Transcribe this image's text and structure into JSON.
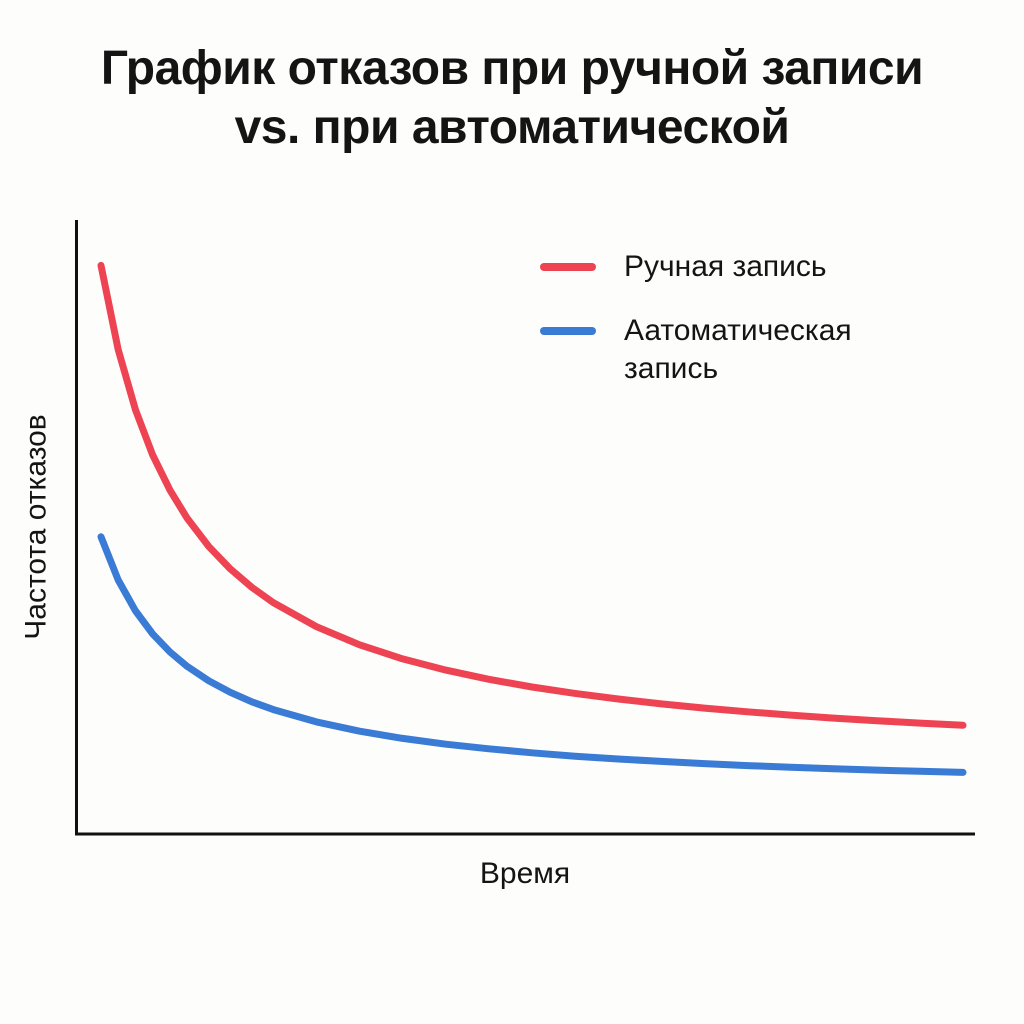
{
  "header": {
    "title_lines": [
      "График отказов при ручной записи",
      "vs. при автоматической"
    ]
  },
  "chart_data": {
    "type": "line",
    "title": "График отказов при ручной записи vs. при автоматической",
    "xlabel": "Время",
    "ylabel": "Частота отказов",
    "xlim": [
      0,
      10
    ],
    "ylim": [
      0,
      100
    ],
    "grid": false,
    "legend_position": "top-right-inside",
    "axis_color": "#111111",
    "series": [
      {
        "name": "Ручная запись",
        "color": "#ee4352",
        "x": [
          0,
          0.2,
          0.4,
          0.6,
          0.8,
          1,
          1.25,
          1.5,
          1.75,
          2,
          2.5,
          3,
          3.5,
          4,
          4.5,
          5,
          5.5,
          6,
          6.5,
          7,
          7.5,
          8,
          8.5,
          9,
          9.5,
          10
        ],
        "y": [
          92,
          78.33,
          68.57,
          61.25,
          55.56,
          51,
          46.44,
          42.8,
          39.82,
          37.33,
          33.43,
          30.5,
          28.21,
          26.4,
          24.91,
          23.67,
          22.62,
          21.71,
          20.92,
          20.25,
          19.65,
          19.11,
          18.63,
          18.2,
          17.81,
          17.45
        ]
      },
      {
        "name": "Аатоматическая запись",
        "color": "#3a7bd5",
        "x": [
          0,
          0.2,
          0.4,
          0.6,
          0.8,
          1,
          1.25,
          1.5,
          1.75,
          2,
          2.5,
          3,
          3.5,
          4,
          4.5,
          5,
          5.5,
          6,
          6.5,
          7,
          7.5,
          8,
          8.5,
          9,
          9.5,
          10
        ],
        "y": [
          48,
          41,
          36,
          32.25,
          29.33,
          27,
          24.67,
          22.8,
          21.27,
          20,
          18,
          16.5,
          15.33,
          14.4,
          13.64,
          13,
          12.45,
          12,
          11.6,
          11.25,
          10.93,
          10.67,
          10.42,
          10.2,
          10,
          9.82
        ]
      }
    ]
  }
}
